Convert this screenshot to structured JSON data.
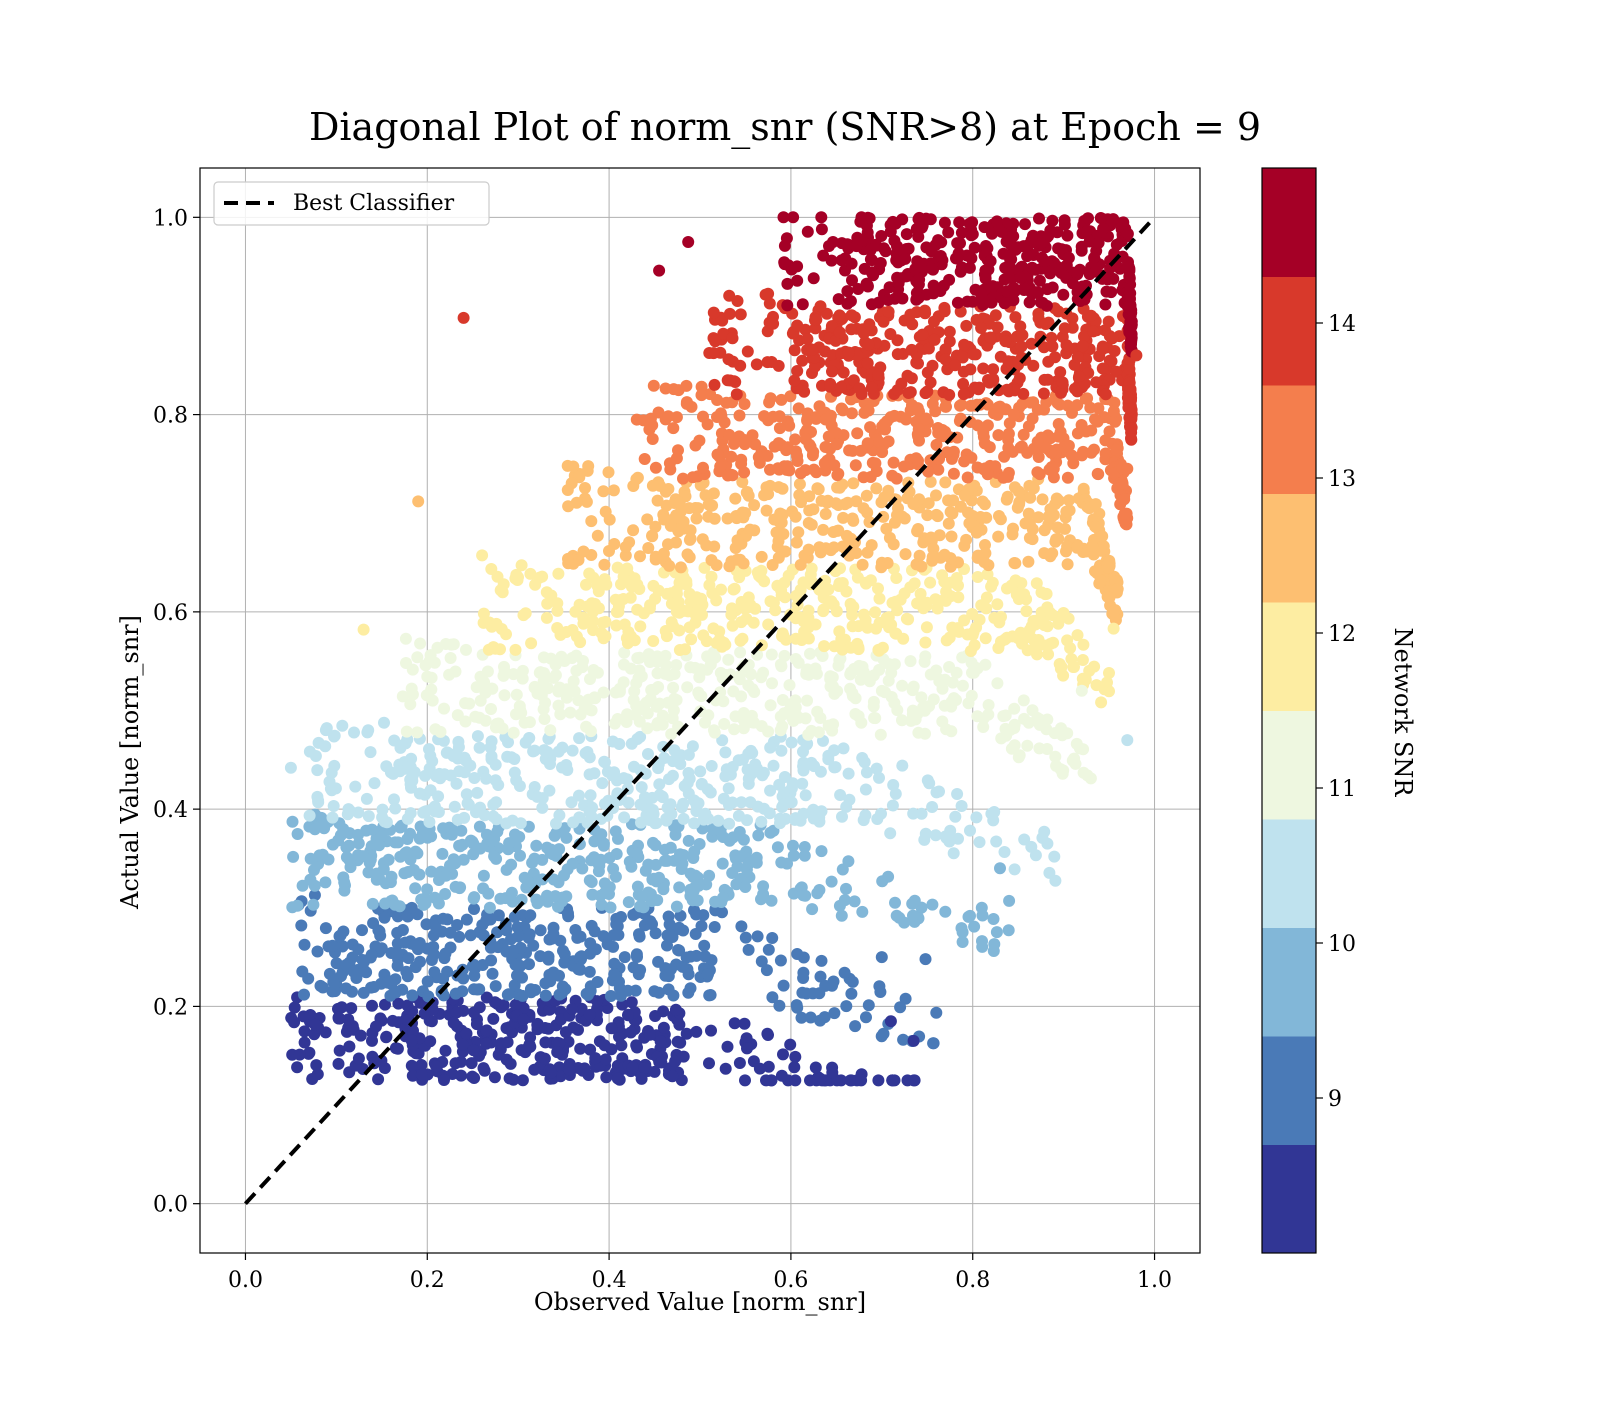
{
  "chart_data": {
    "type": "scatter",
    "title": "Diagonal Plot of norm_snr (SNR>8) at Epoch = 9",
    "xlabel": "Observed Value [norm_snr]",
    "ylabel": "Actual Value [norm_snr]",
    "xlim": [
      -0.05,
      1.05
    ],
    "ylim": [
      -0.05,
      1.05
    ],
    "x_ticks": [
      "0.0",
      "0.2",
      "0.4",
      "0.6",
      "0.8",
      "1.0"
    ],
    "y_ticks": [
      "0.0",
      "0.2",
      "0.4",
      "0.6",
      "0.8",
      "1.0"
    ],
    "grid": true,
    "legend": {
      "placement": "top-left",
      "entries": [
        "Best Classifier"
      ]
    },
    "reference_line": {
      "name": "Best Classifier",
      "style": "dashed",
      "color": "#000000",
      "x": [
        0.0,
        1.0
      ],
      "y": [
        0.0,
        1.0
      ]
    },
    "colorbar": {
      "label": "Network SNR",
      "range": [
        8,
        15
      ],
      "ticks": [
        "9",
        "10",
        "11",
        "12",
        "13",
        "14"
      ],
      "colors": [
        "#313695",
        "#4a7ab7",
        "#82b7d8",
        "#bfe2ee",
        "#eef7e0",
        "#fdeda2",
        "#fdbf71",
        "#f47e4d",
        "#d8392b",
        "#a50026"
      ]
    },
    "bands": [
      {
        "snr": 8.35,
        "color": "#313695",
        "y": [
          0.125,
          0.21
        ],
        "x": [
          0.065,
          0.48
        ],
        "tail_x": 0.74
      },
      {
        "snr": 9.05,
        "color": "#4a7ab7",
        "y": [
          0.21,
          0.3
        ],
        "x": [
          0.08,
          0.52
        ],
        "tail_x": 0.76
      },
      {
        "snr": 9.75,
        "color": "#82b7d8",
        "y": [
          0.3,
          0.385
        ],
        "x": [
          0.105,
          0.58
        ],
        "tail_x": 0.84
      },
      {
        "snr": 10.45,
        "color": "#bfe2ee",
        "y": [
          0.385,
          0.475
        ],
        "x": [
          0.16,
          0.66
        ],
        "tail_x": 0.9
      },
      {
        "snr": 11.15,
        "color": "#eef7e0",
        "y": [
          0.475,
          0.56
        ],
        "x": [
          0.26,
          0.8
        ],
        "tail_x": 0.93
      },
      {
        "snr": 11.85,
        "color": "#fdeda2",
        "y": [
          0.56,
          0.645
        ],
        "x": [
          0.35,
          0.86
        ],
        "tail_x": 0.95
      },
      {
        "snr": 12.55,
        "color": "#fdbf71",
        "y": [
          0.645,
          0.735
        ],
        "x": [
          0.44,
          0.93
        ],
        "tail_x": 0.96
      },
      {
        "snr": 13.25,
        "color": "#f47e4d",
        "y": [
          0.735,
          0.82
        ],
        "x": [
          0.52,
          0.955
        ],
        "tail_x": 0.97
      },
      {
        "snr": 13.95,
        "color": "#d8392b",
        "y": [
          0.82,
          0.91
        ],
        "x": [
          0.6,
          0.97
        ],
        "tail_x": 0.975
      },
      {
        "snr": 14.65,
        "color": "#a50026",
        "y": [
          0.91,
          1.0
        ],
        "x": [
          0.68,
          0.97
        ],
        "tail_x": 0.975
      }
    ],
    "outliers": [
      {
        "x": 0.24,
        "y": 0.898,
        "color": "#d8392b"
      },
      {
        "x": 0.19,
        "y": 0.712,
        "color": "#fdbf71"
      },
      {
        "x": 0.13,
        "y": 0.582,
        "color": "#fdeda2"
      },
      {
        "x": 0.05,
        "y": 0.442,
        "color": "#bfe2ee"
      },
      {
        "x": 0.487,
        "y": 0.975,
        "color": "#a50026"
      },
      {
        "x": 0.455,
        "y": 0.946,
        "color": "#a50026"
      },
      {
        "x": 0.735,
        "y": 0.165,
        "color": "#313695"
      },
      {
        "x": 0.71,
        "y": 0.185,
        "color": "#313695"
      },
      {
        "x": 0.7,
        "y": 0.25,
        "color": "#4a7ab7"
      },
      {
        "x": 0.748,
        "y": 0.248,
        "color": "#4a7ab7"
      },
      {
        "x": 0.84,
        "y": 0.307,
        "color": "#82b7d8"
      },
      {
        "x": 0.81,
        "y": 0.3,
        "color": "#82b7d8"
      },
      {
        "x": 0.83,
        "y": 0.34,
        "color": "#82b7d8"
      },
      {
        "x": 0.97,
        "y": 0.47,
        "color": "#bfe2ee"
      },
      {
        "x": 0.92,
        "y": 0.52,
        "color": "#eef7e0"
      },
      {
        "x": 0.955,
        "y": 0.583,
        "color": "#fdeda2"
      },
      {
        "x": 0.97,
        "y": 0.745,
        "color": "#f47e4d"
      },
      {
        "x": 0.98,
        "y": 0.86,
        "color": "#d8392b"
      }
    ]
  }
}
